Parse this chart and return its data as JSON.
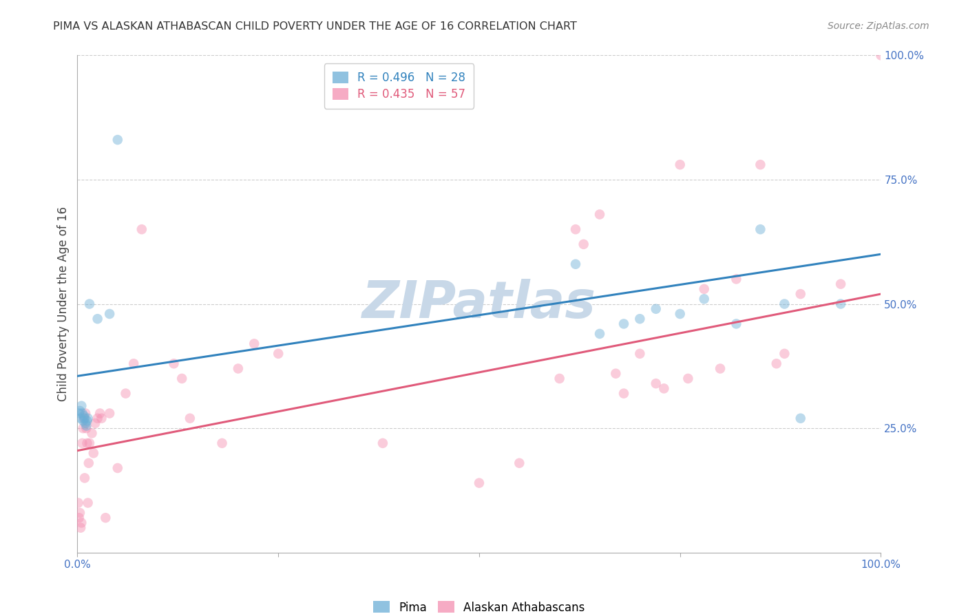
{
  "title": "PIMA VS ALASKAN ATHABASCAN CHILD POVERTY UNDER THE AGE OF 16 CORRELATION CHART",
  "source": "Source: ZipAtlas.com",
  "ylabel": "Child Poverty Under the Age of 16",
  "pima_color": "#6baed6",
  "athabascan_color": "#f48fb1",
  "pima_line_color": "#3182bd",
  "athabascan_line_color": "#e05a7a",
  "pima_R": 0.496,
  "pima_N": 28,
  "athabascan_R": 0.435,
  "athabascan_N": 57,
  "background_color": "#ffffff",
  "grid_color": "#cccccc",
  "axis_label_color": "#4472c4",
  "pima_x": [
    0.002,
    0.003,
    0.004,
    0.005,
    0.006,
    0.007,
    0.008,
    0.009,
    0.01,
    0.011,
    0.012,
    0.013,
    0.015,
    0.025,
    0.04,
    0.05,
    0.62,
    0.65,
    0.68,
    0.7,
    0.72,
    0.75,
    0.78,
    0.82,
    0.85,
    0.88,
    0.9,
    0.95
  ],
  "pima_y": [
    0.28,
    0.285,
    0.27,
    0.295,
    0.28,
    0.265,
    0.275,
    0.27,
    0.26,
    0.255,
    0.265,
    0.27,
    0.5,
    0.47,
    0.48,
    0.83,
    0.58,
    0.44,
    0.46,
    0.47,
    0.49,
    0.48,
    0.51,
    0.46,
    0.65,
    0.5,
    0.27,
    0.5
  ],
  "athabascan_x": [
    0.001,
    0.002,
    0.003,
    0.004,
    0.005,
    0.006,
    0.007,
    0.008,
    0.009,
    0.01,
    0.011,
    0.012,
    0.013,
    0.014,
    0.015,
    0.018,
    0.02,
    0.022,
    0.025,
    0.028,
    0.03,
    0.035,
    0.04,
    0.05,
    0.06,
    0.07,
    0.08,
    0.12,
    0.13,
    0.14,
    0.18,
    0.2,
    0.22,
    0.25,
    0.38,
    0.5,
    0.55,
    0.6,
    0.62,
    0.63,
    0.65,
    0.67,
    0.68,
    0.7,
    0.72,
    0.73,
    0.75,
    0.76,
    0.78,
    0.8,
    0.82,
    0.85,
    0.87,
    0.88,
    0.9,
    0.95,
    1.0
  ],
  "athabascan_y": [
    0.1,
    0.07,
    0.08,
    0.05,
    0.06,
    0.22,
    0.25,
    0.27,
    0.15,
    0.28,
    0.25,
    0.22,
    0.1,
    0.18,
    0.22,
    0.24,
    0.2,
    0.26,
    0.27,
    0.28,
    0.27,
    0.07,
    0.28,
    0.17,
    0.32,
    0.38,
    0.65,
    0.38,
    0.35,
    0.27,
    0.22,
    0.37,
    0.42,
    0.4,
    0.22,
    0.14,
    0.18,
    0.35,
    0.65,
    0.62,
    0.68,
    0.36,
    0.32,
    0.4,
    0.34,
    0.33,
    0.78,
    0.35,
    0.53,
    0.37,
    0.55,
    0.78,
    0.38,
    0.4,
    0.52,
    0.54,
    1.0
  ],
  "xlim": [
    0.0,
    1.0
  ],
  "ylim": [
    0.0,
    1.0
  ],
  "marker_size": 110,
  "marker_alpha": 0.45,
  "watermark_text": "ZIPatlas",
  "watermark_color": "#c8d8e8",
  "pima_line_intercept": 0.355,
  "pima_line_slope": 0.245,
  "ath_line_intercept": 0.205,
  "ath_line_slope": 0.315
}
